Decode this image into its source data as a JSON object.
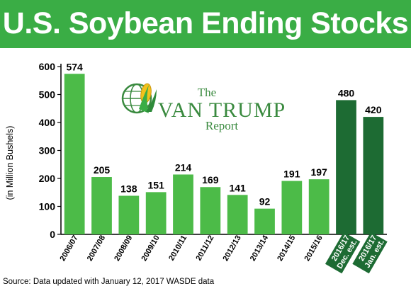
{
  "chart_data": {
    "type": "bar",
    "title": "U.S. Soybean Ending Stocks",
    "ylabel": "(in Million Bushels)",
    "ylim": [
      0,
      600
    ],
    "yticks": [
      0,
      100,
      200,
      300,
      400,
      500,
      600
    ],
    "grid": false,
    "categories": [
      [
        "2006/07"
      ],
      [
        "2007/08"
      ],
      [
        "2008/09"
      ],
      [
        "2009/10"
      ],
      [
        "2010/11"
      ],
      [
        "2011/12"
      ],
      [
        "2012/13"
      ],
      [
        "2013/14"
      ],
      [
        "2014/15"
      ],
      [
        "2015/16"
      ],
      [
        "2016/17",
        "Dec. est."
      ],
      [
        "2016/17",
        "Jan. est."
      ]
    ],
    "values": [
      574,
      205,
      138,
      151,
      214,
      169,
      141,
      92,
      191,
      197,
      480,
      420
    ],
    "bar_colors": [
      "#4cbb48",
      "#4cbb48",
      "#4cbb48",
      "#4cbb48",
      "#4cbb48",
      "#4cbb48",
      "#4cbb48",
      "#4cbb48",
      "#4cbb48",
      "#4cbb48",
      "#1d6b33",
      "#1d6b33"
    ],
    "estimate_tick_bg": "#1d6b33"
  },
  "logo": {
    "the": "The",
    "name": "VAN TRUMP",
    "report": "Report",
    "icon": "globe-corn-icon"
  },
  "source": "Source: Data updated with January 12, 2017 WASDE data",
  "colors": {
    "banner": "#3aad45",
    "bar": "#4cbb48",
    "bar_estimate": "#1d6b33",
    "logo": "#3a8a3f"
  }
}
